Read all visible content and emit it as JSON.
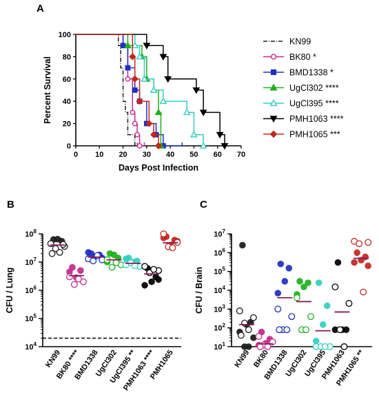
{
  "colors": {
    "KN99": "#1a1a1a",
    "BK80": "#c2298a",
    "BMD1338": "#1f2fbf",
    "UgCl302": "#1eb01e",
    "UgCl395": "#33cfc0",
    "PMH1063": "#000000",
    "PMH1065": "#c0281e",
    "median": "#8b1a5c"
  },
  "chart_data": [
    {
      "panel": "A",
      "type": "line",
      "step": true,
      "xlabel": "Days Post Infection",
      "ylabel": "Percent Survival",
      "xlim": [
        0,
        70
      ],
      "ylim": [
        0,
        100
      ],
      "xticks": [
        0,
        10,
        20,
        30,
        40,
        50,
        60,
        70
      ],
      "yticks": [
        0,
        20,
        40,
        60,
        80,
        100
      ],
      "legend_position": "right",
      "series": [
        {
          "name": "KN99",
          "legend": "KN99",
          "marker": "none",
          "dash": "6,2,1,2",
          "x": [
            0,
            18,
            19,
            20,
            21,
            22,
            25
          ],
          "y": [
            100,
            90,
            70,
            40,
            30,
            10,
            0
          ],
          "censored": []
        },
        {
          "name": "BK80",
          "legend": "BK80 *",
          "marker": "circle-open",
          "x": [
            0,
            20,
            22,
            24,
            25,
            26,
            27
          ],
          "y": [
            100,
            90,
            60,
            30,
            20,
            10,
            0
          ],
          "censored": [
            [
              26,
              0
            ],
            [
              29,
              0
            ]
          ]
        },
        {
          "name": "BMD1338",
          "legend": "BMD1338 *",
          "marker": "square",
          "x": [
            0,
            20,
            22,
            25,
            27,
            30,
            34,
            37
          ],
          "y": [
            100,
            90,
            70,
            50,
            40,
            20,
            10,
            0
          ],
          "censored": [
            [
              45,
              0
            ]
          ]
        },
        {
          "name": "UgCl302",
          "legend": "UgCl302 ****",
          "marker": "triangle",
          "x": [
            0,
            22,
            28,
            30,
            33,
            35,
            36
          ],
          "y": [
            100,
            90,
            80,
            60,
            50,
            30,
            0
          ],
          "censored": []
        },
        {
          "name": "UgCl395",
          "legend": "UgCl395 ****",
          "marker": "triangle-open",
          "x": [
            0,
            25,
            27,
            29,
            33,
            37,
            47,
            50,
            54
          ],
          "y": [
            100,
            90,
            80,
            60,
            50,
            40,
            30,
            10,
            0
          ],
          "censored": []
        },
        {
          "name": "PMH1063",
          "legend": "PMH1063 ****",
          "marker": "triangle-down",
          "x": [
            0,
            30,
            37,
            39,
            51,
            54,
            61,
            63
          ],
          "y": [
            100,
            90,
            80,
            60,
            50,
            30,
            10,
            0
          ],
          "censored": []
        },
        {
          "name": "PMH1065",
          "legend": "PMH1065 ***",
          "marker": "diamond",
          "x": [
            0,
            24,
            25,
            27,
            31,
            33,
            35
          ],
          "y": [
            100,
            80,
            60,
            40,
            20,
            10,
            0
          ],
          "censored": []
        }
      ]
    },
    {
      "panel": "B",
      "type": "scatter",
      "ylabel": "CFU / Lung",
      "yscale": "log",
      "ylim": [
        10000,
        100000000
      ],
      "yticks_exp": [
        4,
        5,
        6,
        7,
        8
      ],
      "limit_of_detection": 20000,
      "categories": [
        {
          "name": "KN99",
          "label": "KN99",
          "sig": "",
          "median": 40000000,
          "filled": [
            63000000,
            55000000,
            65000000
          ],
          "open": [
            45000000,
            36000000,
            30000000,
            22000000,
            20000000,
            42000000
          ]
        },
        {
          "name": "BK80",
          "label": "BK80",
          "sig": "****",
          "median": 3300000,
          "filled": [
            6500000,
            5000000,
            2800000,
            4500000
          ],
          "open": [
            3000000,
            2000000,
            1600000,
            2500000
          ]
        },
        {
          "name": "BMD1338",
          "label": "BMD1338",
          "sig": "",
          "median": 15000000,
          "filled": [
            20000000,
            18000000,
            16000000,
            22000000,
            14000000
          ],
          "open": [
            13000000,
            12000000,
            11000000,
            17000000
          ]
        },
        {
          "name": "UgCl302",
          "label": "UgCl302",
          "sig": "",
          "median": 12000000,
          "filled": [
            20000000,
            14000000,
            18000000,
            10000000
          ],
          "open": [
            12000000,
            8000000,
            6500000,
            9500000
          ]
        },
        {
          "name": "UgCl395",
          "label": "UgCl395",
          "sig": "**",
          "median": 9000000,
          "filled": [
            14000000,
            11000000,
            10000000,
            13000000
          ],
          "open": [
            8000000,
            7000000,
            9500000,
            7500000
          ]
        },
        {
          "name": "PMH1063",
          "label": "PMH1063",
          "sig": "****",
          "median": 3800000,
          "filled": [
            6000000,
            3000000,
            2000000,
            1500000,
            2400000
          ],
          "open": [
            7000000,
            5000000,
            4200000,
            5500000
          ]
        },
        {
          "name": "PMH1065",
          "label": "PMH1065",
          "sig": "",
          "median": 48000000,
          "filled": [
            80000000,
            60000000,
            40000000,
            72000000,
            55000000
          ],
          "open": [
            100000000,
            50000000,
            35000000,
            32000000
          ]
        }
      ]
    },
    {
      "panel": "C",
      "type": "scatter",
      "ylabel": "CFU / Brain",
      "yscale": "log",
      "ylim": [
        10,
        10000000
      ],
      "yticks_exp": [
        1,
        2,
        3,
        4,
        5,
        6,
        7
      ],
      "categories": [
        {
          "name": "KN99",
          "label": "KN99",
          "sig": "",
          "median": 150,
          "filled": [
            2500000,
            200,
            150,
            60,
            30,
            10,
            10
          ],
          "open": [
            800,
            350,
            180,
            80,
            40
          ]
        },
        {
          "name": "BK80",
          "label": "BK80",
          "sig": "",
          "median": 14,
          "filled": [
            60,
            25,
            15,
            12
          ],
          "open": [
            35,
            18,
            12,
            10,
            10
          ]
        },
        {
          "name": "BMD1338",
          "label": "BMD1338",
          "sig": "",
          "median": 4000,
          "filled": [
            250000,
            150000,
            30000,
            7000
          ],
          "open": [
            1000,
            400,
            80,
            80,
            80
          ]
        },
        {
          "name": "UgCl302",
          "label": "UgCl302",
          "sig": "",
          "median": 2500,
          "filled": [
            30000,
            25000,
            15000,
            6000
          ],
          "open": [
            4000,
            400,
            80,
            80
          ]
        },
        {
          "name": "UgCl395",
          "label": "UgCl395",
          "sig": "",
          "median": 70,
          "filled": [
            25000,
            1500,
            150,
            20
          ],
          "open": [
            10,
            10,
            10,
            10
          ]
        },
        {
          "name": "PMH1063",
          "label": "PMH1063",
          "sig": "",
          "median": 700,
          "filled": [
            300000,
            80,
            80,
            80
          ],
          "open": [
            15000,
            2000,
            80,
            10
          ]
        },
        {
          "name": "PMH1065",
          "label": "PMH1065",
          "sig": "**",
          "median": 500000,
          "filled": [
            1000000,
            600000,
            400000,
            300000,
            200000
          ],
          "open": [
            4000000,
            3500000,
            3000000,
            8000
          ]
        }
      ]
    }
  ]
}
